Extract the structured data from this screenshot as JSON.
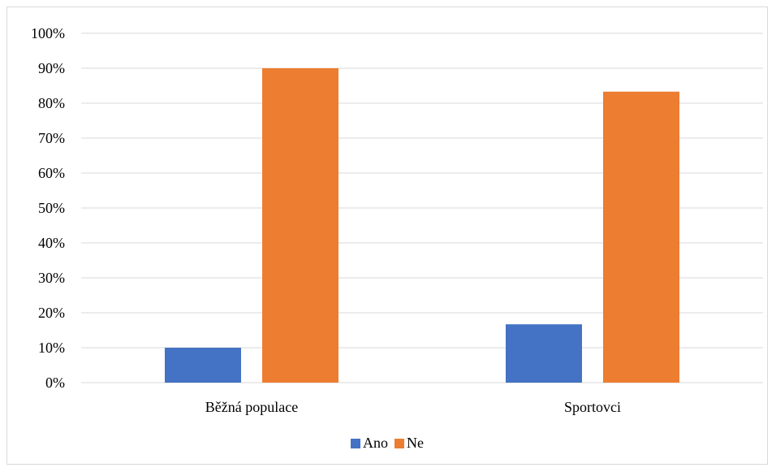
{
  "chart_data": {
    "type": "bar",
    "title": "",
    "xlabel": "",
    "ylabel": "",
    "categories": [
      "Běžná populace",
      "Sportovci"
    ],
    "series": [
      {
        "name": "Ano",
        "values": [
          10,
          16.7
        ],
        "color": "#4472c4"
      },
      {
        "name": "Ne",
        "values": [
          90,
          83.3
        ],
        "color": "#ed7d31"
      }
    ],
    "ylim": [
      0,
      100
    ],
    "yticks": [
      "0%",
      "10%",
      "20%",
      "30%",
      "40%",
      "50%",
      "60%",
      "70%",
      "80%",
      "90%",
      "100%"
    ],
    "grid": true,
    "legend_position": "bottom",
    "gridline_color": "#d9d9d9",
    "axis_color": "#d9d9d9"
  }
}
